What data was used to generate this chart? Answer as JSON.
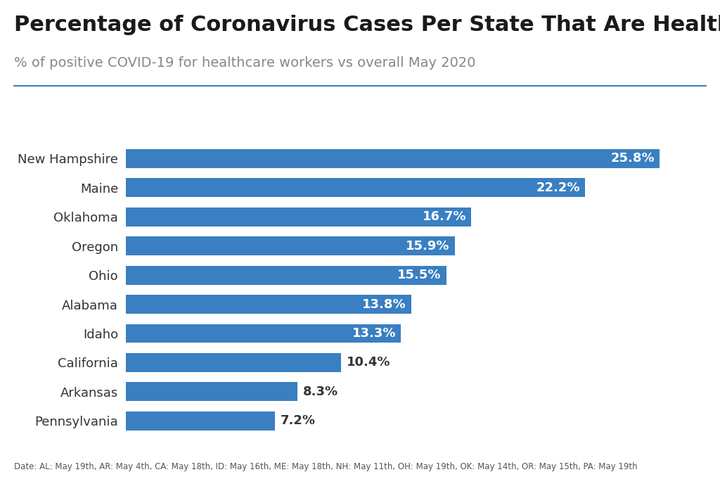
{
  "title": "Percentage of Coronavirus Cases Per State That Are Healthcare Workers",
  "subtitle": "% of positive COVID-19 for healthcare workers vs overall May 2020",
  "footnote": "Date: AL: May 19th, AR: May 4th, CA: May 18th, ID: May 16th, ME: May 18th, NH: May 11th, OH: May 19th, OK: May 14th, OR: May 15th, PA: May 19th",
  "states": [
    "New Hampshire",
    "Maine",
    "Oklahoma",
    "Oregon",
    "Ohio",
    "Alabama",
    "Idaho",
    "California",
    "Arkansas",
    "Pennsylvania"
  ],
  "values": [
    25.8,
    22.2,
    16.7,
    15.9,
    15.5,
    13.8,
    13.3,
    10.4,
    8.3,
    7.2
  ],
  "bar_color": "#3A7FC1",
  "title_color": "#1a1a1a",
  "subtitle_color": "#888888",
  "footnote_color": "#555555",
  "background_color": "#ffffff",
  "label_color_inside": "#ffffff",
  "label_color_outside": "#333333",
  "threshold_inside": 11.0,
  "xlim": [
    0,
    27.5
  ],
  "bar_height": 0.65,
  "title_fontsize": 22,
  "subtitle_fontsize": 14,
  "label_fontsize": 13,
  "ytick_fontsize": 13
}
